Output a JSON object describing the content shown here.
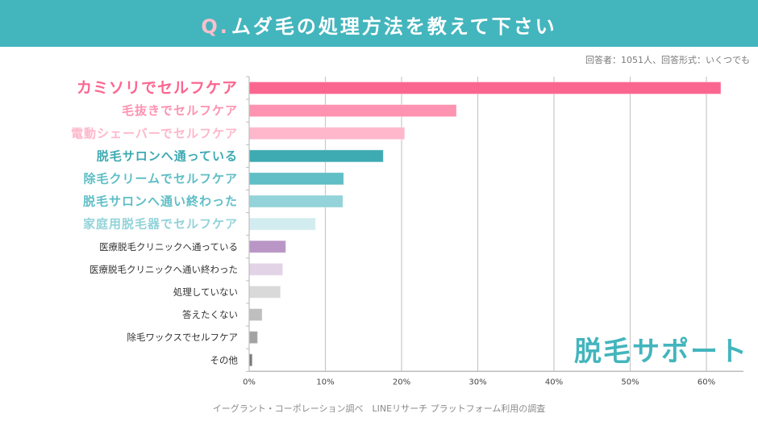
{
  "header": {
    "q_prefix": "Q.",
    "title": "ムダ毛の処理方法を教えて下さい"
  },
  "meta": "回答者：1051人、回答形式：いくつでも",
  "footer": "イーグラント・コーポレーション調べ　LINEリサーチ プラットフォーム利用の調査",
  "brand": "脱毛サポート",
  "colors": {
    "header_bg": "#43b5bd",
    "q_prefix": "#f9c0cc",
    "brand": "#43b5bd"
  },
  "chart_data": {
    "type": "bar",
    "orientation": "horizontal",
    "title": "Q.ムダ毛の処理方法を教えて下さい",
    "xlabel": "",
    "ylabel": "",
    "xlim": [
      0,
      65
    ],
    "x_ticks": [
      "0%",
      "10%",
      "20%",
      "30%",
      "40%",
      "50%",
      "60%"
    ],
    "x_tick_values": [
      0,
      10,
      20,
      30,
      40,
      50,
      60
    ],
    "grid": "vertical",
    "legend": "none",
    "categories": [
      "カミソリでセルフケア",
      "毛抜きでセルフケア",
      "電動シェーバーでセルフケア",
      "脱毛サロンへ通っている",
      "除毛クリームでセルフケア",
      "脱毛サロンへ通い終わった",
      "家庭用脱毛器でセルフケア",
      "医療脱毛クリニックへ通っている",
      "医療脱毛クリニックへ通い終わった",
      "処理していない",
      "答えたくない",
      "除毛ワックスでセルフケア",
      "その他"
    ],
    "values": [
      61.9,
      27.2,
      20.4,
      17.6,
      12.4,
      12.3,
      8.7,
      4.8,
      4.4,
      4.1,
      1.7,
      1.1,
      0.4
    ],
    "bar_colors": [
      "#fb6690",
      "#fd93b0",
      "#feb7cb",
      "#3eaab1",
      "#5fbec6",
      "#93d3d9",
      "#d2ecef",
      "#b996c6",
      "#e3d3e7",
      "#d9d9d9",
      "#bfbfbf",
      "#a3a3a3",
      "#7a7a7a"
    ],
    "label_colors": [
      "#fb6690",
      "#fd93b0",
      "#feb7cb",
      "#3eaab1",
      "#5fbec6",
      "#5fbec6",
      "#93d3d9",
      "#333333",
      "#333333",
      "#333333",
      "#333333",
      "#333333",
      "#333333"
    ],
    "label_emphasis": [
      "large",
      "medium",
      "medium",
      "medium",
      "medium",
      "medium",
      "medium",
      "small",
      "small",
      "small",
      "small",
      "small",
      "small"
    ]
  }
}
